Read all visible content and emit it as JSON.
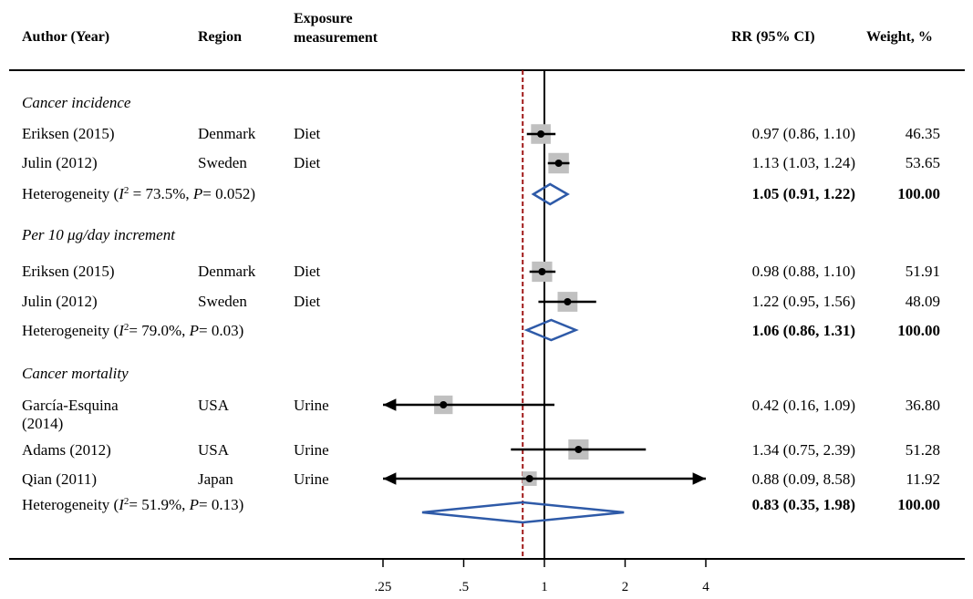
{
  "headers": {
    "author": "Author (Year)",
    "region": "Region",
    "exposure_line1": "Exposure",
    "exposure_line2": "measurement",
    "rr": "RR (95% CI)",
    "weight": "Weight, %"
  },
  "rows": [
    {
      "type": "section",
      "label": "Cancer incidence"
    },
    {
      "type": "study",
      "author": "Eriksen (2015)",
      "author2": "",
      "region": "Denmark",
      "exposure": "Diet",
      "rr_text": "0.97 (0.86, 1.10)",
      "weight_text": "46.35"
    },
    {
      "type": "study",
      "author": "Julin (2012)",
      "author2": "",
      "region": "Sweden",
      "exposure": "Diet",
      "rr_text": "1.13 (1.03, 1.24)",
      "weight_text": "53.65"
    },
    {
      "type": "pooled",
      "h_pre": "Heterogeneity (",
      "h_i": "I",
      "h_sup": "2",
      "h_mid": " = 73.5%, ",
      "h_p": "P",
      "h_post": "= 0.052)",
      "rr_text": "1.05 (0.91, 1.22)",
      "weight_text": "100.00"
    },
    {
      "type": "section",
      "label": "Per 10 μg/day increment"
    },
    {
      "type": "study",
      "author": "Eriksen (2015)",
      "author2": "",
      "region": "Denmark",
      "exposure": "Diet",
      "rr_text": "0.98 (0.88, 1.10)",
      "weight_text": "51.91"
    },
    {
      "type": "study",
      "author": "Julin (2012)",
      "author2": "",
      "region": "Sweden",
      "exposure": "Diet",
      "rr_text": "1.22 (0.95, 1.56)",
      "weight_text": "48.09"
    },
    {
      "type": "pooled",
      "h_pre": "Heterogeneity (",
      "h_i": "I",
      "h_sup": "2",
      "h_mid": "= 79.0%, ",
      "h_p": "P",
      "h_post": "= 0.03)",
      "rr_text": "1.06 (0.86, 1.31)",
      "weight_text": "100.00"
    },
    {
      "type": "section",
      "label": "Cancer mortality"
    },
    {
      "type": "study",
      "author": "García-Esquina",
      "author2": "(2014)",
      "region": "USA",
      "exposure": "Urine",
      "rr_text": "0.42 (0.16, 1.09)",
      "weight_text": "36.80"
    },
    {
      "type": "study",
      "author": "Adams (2012)",
      "author2": "",
      "region": "USA",
      "exposure": "Urine",
      "rr_text": "1.34 (0.75, 2.39)",
      "weight_text": "51.28"
    },
    {
      "type": "study",
      "author": "Qian (2011)",
      "author2": "",
      "region": "Japan",
      "exposure": "Urine",
      "rr_text": "0.88 (0.09, 8.58)",
      "weight_text": "11.92"
    },
    {
      "type": "pooled",
      "h_pre": "Heterogeneity (",
      "h_i": "I",
      "h_sup": "2",
      "h_mid": "= 51.9%, ",
      "h_p": "P",
      "h_post": "= 0.13)",
      "rr_text": "0.83 (0.35, 1.98)",
      "weight_text": "100.00"
    }
  ],
  "chart_data": {
    "type": "forest",
    "x_scale": "log",
    "xlim": [
      0.25,
      4
    ],
    "x_ticks": [
      ".25",
      ".5",
      "1",
      "2",
      "4"
    ],
    "x_tick_values": [
      0.25,
      0.5,
      1,
      2,
      4
    ],
    "null_line": 1,
    "pooled_reference_line": 0.83,
    "colors": {
      "marker_box": "#c0c0c0",
      "diamond": "#2e5aa8",
      "reference_line": "#a01818",
      "line": "#000000"
    },
    "studies": [
      {
        "group": "Cancer incidence",
        "label": "Eriksen (2015)",
        "rr": 0.97,
        "lo": 0.86,
        "hi": 1.1,
        "weight": 46.35
      },
      {
        "group": "Cancer incidence",
        "label": "Julin (2012)",
        "rr": 1.13,
        "lo": 1.03,
        "hi": 1.24,
        "weight": 53.65
      },
      {
        "group": "Per 10 μg/day increment",
        "label": "Eriksen (2015)",
        "rr": 0.98,
        "lo": 0.88,
        "hi": 1.1,
        "weight": 51.91
      },
      {
        "group": "Per 10 μg/day increment",
        "label": "Julin (2012)",
        "rr": 1.22,
        "lo": 0.95,
        "hi": 1.56,
        "weight": 48.09
      },
      {
        "group": "Cancer mortality",
        "label": "García-Esquina (2014)",
        "rr": 0.42,
        "lo": 0.16,
        "hi": 1.09,
        "weight": 36.8
      },
      {
        "group": "Cancer mortality",
        "label": "Adams (2012)",
        "rr": 1.34,
        "lo": 0.75,
        "hi": 2.39,
        "weight": 51.28
      },
      {
        "group": "Cancer mortality",
        "label": "Qian (2011)",
        "rr": 0.88,
        "lo": 0.09,
        "hi": 8.58,
        "weight": 11.92
      }
    ],
    "pooled": [
      {
        "group": "Cancer incidence",
        "rr": 1.05,
        "lo": 0.91,
        "hi": 1.22,
        "i2": 73.5,
        "p": 0.052
      },
      {
        "group": "Per 10 μg/day increment",
        "rr": 1.06,
        "lo": 0.86,
        "hi": 1.31,
        "i2": 79.0,
        "p": 0.03
      },
      {
        "group": "Cancer mortality",
        "rr": 0.83,
        "lo": 0.35,
        "hi": 1.98,
        "i2": 51.9,
        "p": 0.13
      }
    ]
  }
}
